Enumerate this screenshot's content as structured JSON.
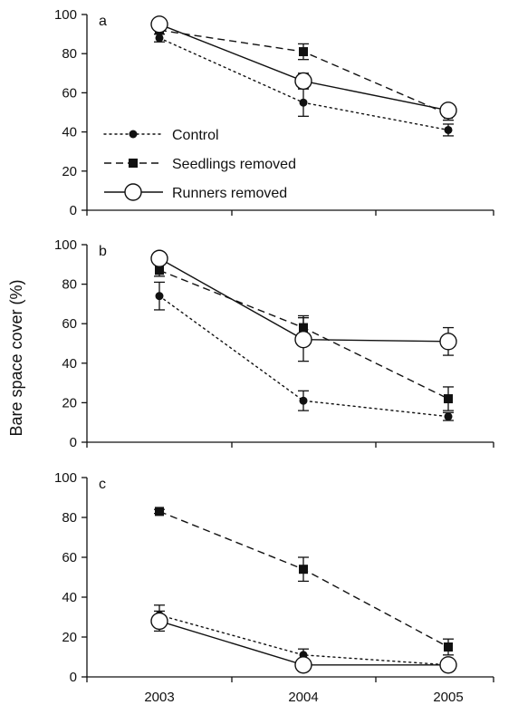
{
  "figure": {
    "ylabel": "Bare space cover (%)"
  },
  "legend": [
    {
      "series": "control",
      "label": "Control"
    },
    {
      "series": "seedlings",
      "label": "Seedlings removed"
    },
    {
      "series": "runners",
      "label": "Runners removed"
    }
  ],
  "chart_data": [
    {
      "type": "line",
      "panel": "a",
      "x": [
        "2003",
        "2004",
        "2005"
      ],
      "ylim": [
        0,
        100
      ],
      "yticks": [
        0,
        20,
        40,
        60,
        80,
        100
      ],
      "legend_position": "lower-left",
      "series": [
        {
          "id": "control",
          "name": "Control",
          "marker": "dot",
          "dash": "dotted",
          "values": [
            88,
            55,
            41
          ],
          "err": [
            2,
            7,
            3
          ]
        },
        {
          "id": "seedlings",
          "name": "Seedlings removed",
          "marker": "square",
          "dash": "dashed",
          "values": [
            92,
            81,
            49
          ],
          "err": [
            2,
            4,
            3
          ]
        },
        {
          "id": "runners",
          "name": "Runners removed",
          "marker": "circle",
          "dash": "solid",
          "values": [
            95,
            66,
            51
          ],
          "err": [
            2,
            4,
            2
          ]
        }
      ]
    },
    {
      "type": "line",
      "panel": "b",
      "x": [
        "2003",
        "2004",
        "2005"
      ],
      "ylim": [
        0,
        100
      ],
      "yticks": [
        0,
        20,
        40,
        60,
        80,
        100
      ],
      "series": [
        {
          "id": "control",
          "name": "Control",
          "marker": "dot",
          "dash": "dotted",
          "values": [
            74,
            21,
            13
          ],
          "err": [
            7,
            5,
            2
          ]
        },
        {
          "id": "seedlings",
          "name": "Seedlings removed",
          "marker": "square",
          "dash": "dashed",
          "values": [
            87,
            58,
            22
          ],
          "err": [
            3,
            6,
            6
          ]
        },
        {
          "id": "runners",
          "name": "Runners removed",
          "marker": "circle",
          "dash": "solid",
          "values": [
            93,
            52,
            51
          ],
          "err": [
            2,
            11,
            7
          ]
        }
      ]
    },
    {
      "type": "line",
      "panel": "c",
      "x": [
        "2003",
        "2004",
        "2005"
      ],
      "ylim": [
        0,
        100
      ],
      "yticks": [
        0,
        20,
        40,
        60,
        80,
        100
      ],
      "series": [
        {
          "id": "control",
          "name": "Control",
          "marker": "dot",
          "dash": "dotted",
          "values": [
            31,
            11,
            6
          ],
          "err": [
            5,
            3,
            2
          ]
        },
        {
          "id": "seedlings",
          "name": "Seedlings removed",
          "marker": "square",
          "dash": "dashed",
          "values": [
            83,
            54,
            15
          ],
          "err": [
            1,
            6,
            4
          ]
        },
        {
          "id": "runners",
          "name": "Runners removed",
          "marker": "circle",
          "dash": "solid",
          "values": [
            28,
            6,
            6
          ],
          "err": [
            5,
            2,
            3
          ]
        }
      ]
    }
  ]
}
